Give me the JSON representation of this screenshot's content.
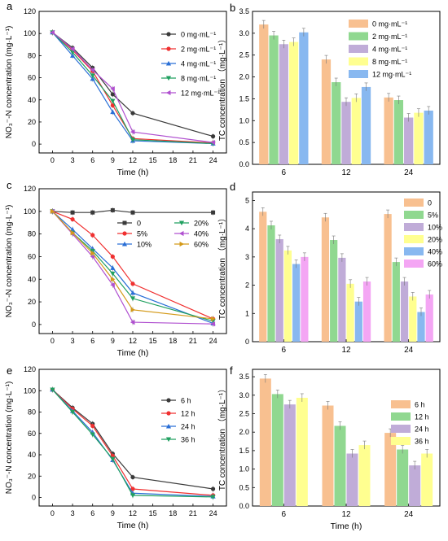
{
  "figure": {
    "x_time_label": "Time (h)",
    "x_time_ticks": [
      "0",
      "3",
      "6",
      "9",
      "12",
      "15",
      "18",
      "21",
      "24"
    ]
  },
  "chart_data": [
    {
      "panel": "a",
      "type": "line",
      "xlabel": "Time (h)",
      "ylabel": "NO₃⁻-N concentration (mg·L⁻¹)",
      "xlim": [
        -2,
        26
      ],
      "ylim": [
        -8,
        120
      ],
      "yticks": [
        0,
        20,
        40,
        60,
        80,
        100,
        120
      ],
      "x": [
        0,
        3,
        6,
        9,
        12,
        24
      ],
      "legend_position": "top-right",
      "series": [
        {
          "name": "0 mg·mL⁻¹",
          "color": "#3a3a3a",
          "marker": "circle",
          "values": [
            101,
            87,
            69,
            45,
            28,
            7
          ]
        },
        {
          "name": "2 mg·mL⁻¹",
          "color": "#f03030",
          "marker": "circle",
          "values": [
            101,
            85,
            66,
            35,
            5,
            1
          ]
        },
        {
          "name": "4 mg·mL⁻¹",
          "color": "#2a6fd6",
          "marker": "triangle-up",
          "values": [
            101,
            80,
            59,
            29,
            3,
            0.5
          ]
        },
        {
          "name": "8 mg·mL⁻¹",
          "color": "#20a060",
          "marker": "triangle-down",
          "values": [
            101,
            83,
            62,
            39,
            4,
            0.5
          ]
        },
        {
          "name": "12 mg·mL⁻¹",
          "color": "#b050d0",
          "marker": "triangle-left",
          "values": [
            101,
            86,
            67,
            50,
            11,
            1.5
          ]
        }
      ]
    },
    {
      "panel": "b",
      "type": "bar",
      "xlabel": "",
      "ylabel": "TC concentration （mg·L⁻¹）",
      "categories": [
        "6",
        "12",
        "24"
      ],
      "ylim": [
        0,
        3.5
      ],
      "yticks": [
        "0.0",
        "0.5",
        "1.0",
        "1.5",
        "2.0",
        "2.5",
        "3.0",
        "3.5"
      ],
      "legend_position": "top-right",
      "series": [
        {
          "name": "0 mg·mL⁻¹",
          "color": "#f8c090",
          "values": [
            3.2,
            2.4,
            1.53
          ]
        },
        {
          "name": "2 mg·mL⁻¹",
          "color": "#90d890",
          "values": [
            2.95,
            1.88,
            1.47
          ]
        },
        {
          "name": "4 mg·mL⁻¹",
          "color": "#c0acd8",
          "values": [
            2.75,
            1.43,
            1.07
          ]
        },
        {
          "name": "8 mg·mL⁻¹",
          "color": "#ffff90",
          "values": [
            2.8,
            1.52,
            1.18
          ]
        },
        {
          "name": "12 mg·mL⁻¹",
          "color": "#88b8f0",
          "values": [
            3.02,
            1.77,
            1.23
          ]
        }
      ]
    },
    {
      "panel": "c",
      "type": "line",
      "xlabel": "Time (h)",
      "ylabel": "NO₃⁻-N concentration (mg·L⁻¹)",
      "xlim": [
        -2,
        26
      ],
      "ylim": [
        -8,
        120
      ],
      "yticks": [
        0,
        20,
        40,
        60,
        80,
        100,
        120
      ],
      "x": [
        0,
        3,
        6,
        9,
        12,
        24
      ],
      "legend_position": "center-right",
      "series": [
        {
          "name": "0",
          "color": "#3a3a3a",
          "marker": "square",
          "values": [
            100,
            99,
            99,
            101,
            99,
            99
          ]
        },
        {
          "name": "5%",
          "color": "#f03030",
          "marker": "circle",
          "values": [
            100,
            93,
            79,
            60,
            36,
            5
          ]
        },
        {
          "name": "10%",
          "color": "#2a6fd6",
          "marker": "triangle-up",
          "values": [
            100,
            84,
            67,
            50,
            28,
            1
          ]
        },
        {
          "name": "20%",
          "color": "#20a060",
          "marker": "triangle-down",
          "values": [
            100,
            81,
            65,
            45,
            23,
            3
          ]
        },
        {
          "name": "40%",
          "color": "#b050d0",
          "marker": "triangle-left",
          "values": [
            100,
            80,
            60,
            35,
            2,
            0.5
          ]
        },
        {
          "name": "60%",
          "color": "#d49a1a",
          "marker": "triangle-right",
          "values": [
            100,
            81,
            63,
            40,
            13,
            5
          ]
        }
      ]
    },
    {
      "panel": "d",
      "type": "bar",
      "xlabel": "",
      "ylabel": "TC concentration （mg·L⁻¹）",
      "categories": [
        "6",
        "12",
        "24"
      ],
      "ylim": [
        0,
        5.3
      ],
      "yticks": [
        "0",
        "1",
        "2",
        "3",
        "4",
        "5"
      ],
      "legend_position": "top-right",
      "series": [
        {
          "name": "0",
          "color": "#f8c090",
          "values": [
            4.6,
            4.4,
            4.52
          ]
        },
        {
          "name": "5%",
          "color": "#90d890",
          "values": [
            4.12,
            3.6,
            2.82
          ]
        },
        {
          "name": "10%",
          "color": "#c0acd8",
          "values": [
            3.63,
            2.97,
            2.13
          ]
        },
        {
          "name": "20%",
          "color": "#ffff90",
          "values": [
            3.23,
            2.05,
            1.6
          ]
        },
        {
          "name": "40%",
          "color": "#88b8f0",
          "values": [
            2.75,
            1.42,
            1.05
          ]
        },
        {
          "name": "60%",
          "color": "#f4a6f4",
          "values": [
            3.0,
            2.13,
            1.67
          ]
        }
      ]
    },
    {
      "panel": "e",
      "type": "line",
      "xlabel": "Time (h)",
      "ylabel": "NO₃⁻-N concentration (mg·L⁻¹)",
      "xlim": [
        -2,
        26
      ],
      "ylim": [
        -8,
        120
      ],
      "yticks": [
        0,
        20,
        40,
        60,
        80,
        100,
        120
      ],
      "x": [
        0,
        3,
        6,
        9,
        12,
        24
      ],
      "legend_position": "top-right",
      "series": [
        {
          "name": "6 h",
          "color": "#3a3a3a",
          "marker": "circle",
          "values": [
            101,
            84,
            69,
            41,
            19,
            8
          ]
        },
        {
          "name": "12 h",
          "color": "#f03030",
          "marker": "circle",
          "values": [
            101,
            83,
            67,
            39,
            8,
            2
          ]
        },
        {
          "name": "24 h",
          "color": "#2a6fd6",
          "marker": "triangle-up",
          "values": [
            101,
            81,
            61,
            35,
            4,
            1
          ]
        },
        {
          "name": "36 h",
          "color": "#20a060",
          "marker": "triangle-down",
          "values": [
            101,
            80,
            59,
            36,
            2,
            0.5
          ]
        }
      ]
    },
    {
      "panel": "f",
      "type": "bar",
      "xlabel": "Time (h)",
      "ylabel": "TC concentration （mg·L⁻¹）",
      "categories": [
        "6",
        "12",
        "24"
      ],
      "ylim": [
        0,
        3.7
      ],
      "yticks": [
        "0.0",
        "0.5",
        "1.0",
        "1.5",
        "2.0",
        "2.5",
        "3.0",
        "3.5"
      ],
      "legend_position": "top-right",
      "series": [
        {
          "name": "6 h",
          "color": "#f8c090",
          "values": [
            3.45,
            2.72,
            1.98
          ]
        },
        {
          "name": "12 h",
          "color": "#90d890",
          "values": [
            3.03,
            2.17,
            1.53
          ]
        },
        {
          "name": "24 h",
          "color": "#c0acd8",
          "values": [
            2.75,
            1.42,
            1.1
          ]
        },
        {
          "name": "36 h",
          "color": "#ffff90",
          "values": [
            2.93,
            1.65,
            1.42
          ]
        }
      ]
    }
  ]
}
